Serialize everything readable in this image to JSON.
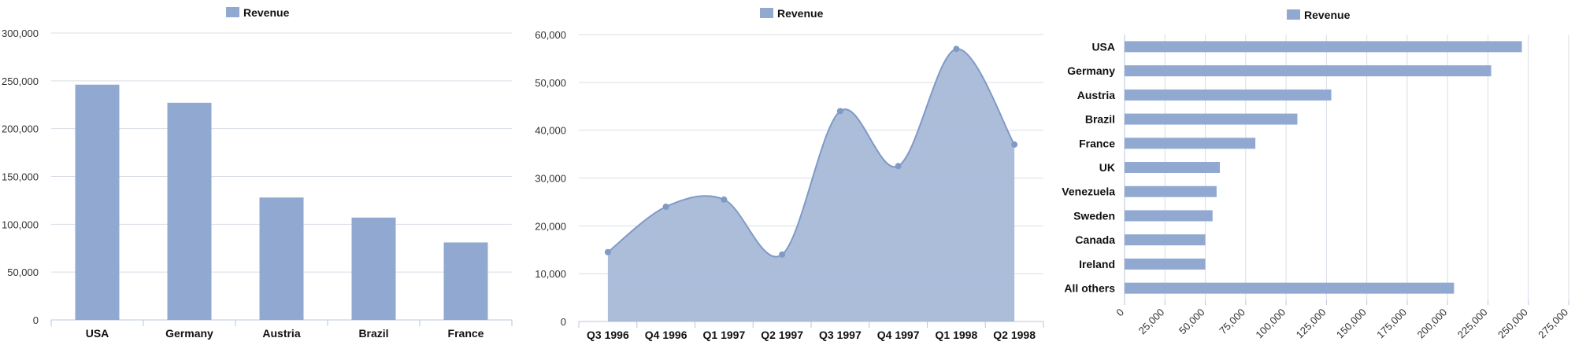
{
  "colors": {
    "bar": "#91a9d0",
    "area_fill": "#a3b6d6",
    "line": "#7f9ac6",
    "grid": "#d8dde6",
    "axis": "#b9c6dc"
  },
  "chart_data": [
    {
      "type": "bar",
      "legend": "Revenue",
      "categories": [
        "USA",
        "Germany",
        "Austria",
        "Brazil",
        "France"
      ],
      "values": [
        246000,
        227000,
        128000,
        107000,
        81000
      ],
      "ylim": [
        0,
        300000
      ],
      "yticks": [
        "0",
        "50,000",
        "100,000",
        "150,000",
        "200,000",
        "250,000",
        "300,000"
      ],
      "grid": true,
      "legend_position": "top"
    },
    {
      "type": "area",
      "legend": "Revenue",
      "categories": [
        "Q3 1996",
        "Q4 1996",
        "Q1 1997",
        "Q2 1997",
        "Q3 1997",
        "Q4 1997",
        "Q1 1998",
        "Q2 1998"
      ],
      "values": [
        14500,
        24000,
        25500,
        14000,
        44000,
        32500,
        57000,
        37000
      ],
      "ylim": [
        0,
        60000
      ],
      "yticks": [
        "0",
        "10,000",
        "20,000",
        "30,000",
        "40,000",
        "50,000",
        "60,000"
      ],
      "grid": true,
      "legend_position": "top"
    },
    {
      "type": "bar",
      "orientation": "horizontal",
      "legend": "Revenue",
      "categories": [
        "USA",
        "Germany",
        "Austria",
        "Brazil",
        "France",
        "UK",
        "Venezuela",
        "Sweden",
        "Canada",
        "Ireland",
        "All others"
      ],
      "values": [
        246000,
        227000,
        128000,
        107000,
        81000,
        59000,
        57000,
        54500,
        50000,
        50000,
        204000
      ],
      "xlim": [
        0,
        275000
      ],
      "xticks": [
        "0",
        "25,000",
        "50,000",
        "75,000",
        "100,000",
        "125,000",
        "150,000",
        "175,000",
        "200,000",
        "225,000",
        "250,000",
        "275,000"
      ],
      "grid": true,
      "legend_position": "top"
    }
  ]
}
